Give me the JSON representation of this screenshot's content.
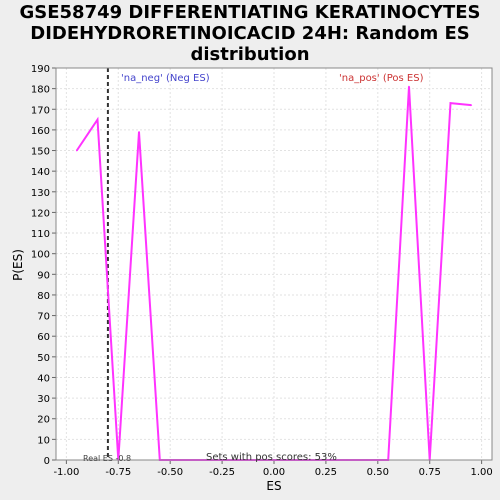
{
  "title_lines": [
    "GSE58749 DIFFERENTIATING KERATINOCYTES",
    "DIDEHYDRORETINOICACID 24H: Random ES",
    "distribution"
  ],
  "colors": {
    "background": "#eeeeee",
    "plot_bg": "#ffffff",
    "line": "#ff33ff",
    "neg_label": "#4444cc",
    "pos_label": "#cc3333",
    "grid": "#dddddd",
    "real_es_line": "#333333"
  },
  "chart_data": {
    "type": "line",
    "title": "GSE58749 DIFFERENTIATING KERATINOCYTES DIDEHYDRORETINOICACID 24H: Random ES distribution",
    "xlabel": "ES",
    "ylabel": "P(ES)",
    "xlim": [
      -1.05,
      1.05
    ],
    "ylim": [
      0,
      190
    ],
    "xticks": [
      -1.0,
      -0.75,
      -0.5,
      -0.25,
      0.0,
      0.25,
      0.5,
      0.75,
      1.0
    ],
    "xtick_labels": [
      "-1.00",
      "-0.75",
      "-0.50",
      "-0.25",
      "0.00",
      "0.25",
      "0.50",
      "0.75",
      "1.00"
    ],
    "yticks": [
      0,
      10,
      20,
      30,
      40,
      50,
      60,
      70,
      80,
      90,
      100,
      110,
      120,
      130,
      140,
      150,
      160,
      170,
      180,
      190
    ],
    "grid": true,
    "x": [
      -0.95,
      -0.85,
      -0.75,
      -0.65,
      -0.55,
      -0.45,
      -0.35,
      -0.25,
      -0.15,
      -0.05,
      0.05,
      0.15,
      0.25,
      0.35,
      0.45,
      0.55,
      0.65,
      0.75,
      0.85,
      0.95
    ],
    "y": [
      150,
      165,
      0,
      159,
      0,
      0,
      0,
      0,
      0,
      0,
      0,
      0,
      0,
      0,
      0,
      0,
      181,
      0,
      173,
      172
    ],
    "real_es": -0.8,
    "annotations": {
      "neg": "'na_neg' (Neg ES)",
      "pos": "'na_pos' (Pos ES)",
      "real_es": "Real ES -0.8",
      "pos_scores": "Sets with pos scores: 53%"
    }
  }
}
